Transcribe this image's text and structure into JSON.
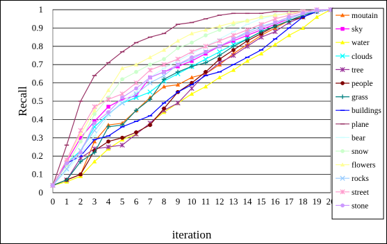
{
  "chart_data": {
    "type": "line",
    "title": "",
    "xlabel": "iteration",
    "ylabel": "Recall",
    "x": [
      0,
      1,
      2,
      3,
      4,
      5,
      6,
      7,
      8,
      9,
      10,
      11,
      12,
      13,
      14,
      15,
      16,
      17,
      18,
      19,
      20
    ],
    "xlim": [
      0,
      20
    ],
    "ylim": [
      0,
      1
    ],
    "yticks": [
      "0",
      "0.1",
      "0.2",
      "0.3",
      "0.4",
      "0.5",
      "0.6",
      "0.7",
      "0.8",
      "0.9",
      "1"
    ],
    "grid": "horizontal",
    "legend": "right",
    "series": [
      {
        "name": "moutain",
        "color": "#ff6a00",
        "marker": "triangle",
        "values": [
          0.04,
          0.07,
          0.1,
          0.28,
          0.37,
          0.38,
          0.45,
          0.52,
          0.58,
          0.59,
          0.63,
          0.65,
          0.7,
          0.76,
          0.81,
          0.86,
          0.9,
          0.94,
          0.97,
          0.99,
          1.0
        ]
      },
      {
        "name": "sky",
        "color": "#ff00ff",
        "marker": "square",
        "values": [
          0.04,
          0.17,
          0.3,
          0.39,
          0.47,
          0.51,
          0.53,
          0.63,
          0.66,
          0.69,
          0.72,
          0.76,
          0.8,
          0.83,
          0.86,
          0.89,
          0.92,
          0.95,
          0.98,
          0.99,
          1.0
        ]
      },
      {
        "name": "water",
        "color": "#ffff00",
        "marker": "triangle",
        "values": [
          0.04,
          0.06,
          0.09,
          0.17,
          0.24,
          0.29,
          0.32,
          0.38,
          0.44,
          0.49,
          0.54,
          0.58,
          0.63,
          0.67,
          0.72,
          0.76,
          0.81,
          0.86,
          0.9,
          0.96,
          1.0
        ]
      },
      {
        "name": "clouds",
        "color": "#00ffff",
        "marker": "x",
        "values": [
          0.04,
          0.16,
          0.23,
          0.36,
          0.43,
          0.49,
          0.52,
          0.55,
          0.61,
          0.65,
          0.69,
          0.73,
          0.77,
          0.81,
          0.84,
          0.88,
          0.91,
          0.94,
          0.97,
          0.99,
          1.0
        ]
      },
      {
        "name": "tree",
        "color": "#993399",
        "marker": "star",
        "values": [
          0.04,
          0.07,
          0.19,
          0.24,
          0.25,
          0.26,
          0.32,
          0.38,
          0.45,
          0.49,
          0.57,
          0.65,
          0.71,
          0.75,
          0.8,
          0.85,
          0.88,
          0.93,
          0.96,
          0.99,
          1.0
        ]
      },
      {
        "name": "people",
        "color": "#7f0000",
        "marker": "circle",
        "values": [
          0.04,
          0.07,
          0.1,
          0.23,
          0.28,
          0.3,
          0.33,
          0.37,
          0.46,
          0.55,
          0.6,
          0.66,
          0.73,
          0.78,
          0.83,
          0.87,
          0.91,
          0.94,
          0.96,
          0.99,
          1.0
        ]
      },
      {
        "name": "grass",
        "color": "#008080",
        "marker": "plus",
        "values": [
          0.04,
          0.07,
          0.17,
          0.22,
          0.36,
          0.37,
          0.45,
          0.51,
          0.62,
          0.66,
          0.69,
          0.71,
          0.75,
          0.8,
          0.84,
          0.88,
          0.91,
          0.94,
          0.97,
          0.99,
          1.0
        ]
      },
      {
        "name": "buildings",
        "color": "#0000ff",
        "marker": "dash",
        "values": [
          0.04,
          0.16,
          0.2,
          0.29,
          0.31,
          0.36,
          0.39,
          0.42,
          0.49,
          0.55,
          0.59,
          0.64,
          0.66,
          0.7,
          0.74,
          0.78,
          0.84,
          0.9,
          0.96,
          0.99,
          1.0
        ]
      },
      {
        "name": "plane",
        "color": "#993366",
        "marker": "dash",
        "values": [
          0.04,
          0.26,
          0.5,
          0.64,
          0.71,
          0.77,
          0.82,
          0.85,
          0.87,
          0.92,
          0.93,
          0.95,
          0.97,
          0.98,
          0.98,
          0.98,
          0.99,
          0.99,
          0.99,
          1.0,
          1.0
        ]
      },
      {
        "name": "bear",
        "color": "#ccffff",
        "marker": "dash",
        "values": [
          0.04,
          0.12,
          0.21,
          0.31,
          0.42,
          0.5,
          0.55,
          0.63,
          0.68,
          0.72,
          0.76,
          0.8,
          0.84,
          0.88,
          0.92,
          0.95,
          0.97,
          0.98,
          0.99,
          1.0,
          1.0
        ]
      },
      {
        "name": "snow",
        "color": "#ccffcc",
        "marker": "circle",
        "values": [
          0.04,
          0.15,
          0.28,
          0.43,
          0.52,
          0.62,
          0.66,
          0.7,
          0.73,
          0.79,
          0.82,
          0.86,
          0.89,
          0.92,
          0.94,
          0.96,
          0.97,
          0.98,
          0.99,
          1.0,
          1.0
        ]
      },
      {
        "name": "flowers",
        "color": "#ffff99",
        "marker": "triangle",
        "values": [
          0.04,
          0.18,
          0.32,
          0.45,
          0.56,
          0.68,
          0.7,
          0.74,
          0.78,
          0.83,
          0.87,
          0.89,
          0.91,
          0.93,
          0.94,
          0.96,
          0.97,
          0.98,
          0.99,
          1.0,
          1.0
        ]
      },
      {
        "name": "rocks",
        "color": "#99ccff",
        "marker": "x",
        "values": [
          0.04,
          0.13,
          0.23,
          0.34,
          0.43,
          0.49,
          0.54,
          0.6,
          0.64,
          0.7,
          0.73,
          0.77,
          0.8,
          0.84,
          0.88,
          0.91,
          0.93,
          0.95,
          0.98,
          0.99,
          1.0
        ]
      },
      {
        "name": "street",
        "color": "#ff99cc",
        "marker": "star",
        "values": [
          0.04,
          0.18,
          0.34,
          0.47,
          0.51,
          0.54,
          0.6,
          0.67,
          0.7,
          0.73,
          0.77,
          0.8,
          0.83,
          0.86,
          0.89,
          0.92,
          0.95,
          0.97,
          0.99,
          1.0,
          1.0
        ]
      },
      {
        "name": "stone",
        "color": "#cc99ff",
        "marker": "circle",
        "values": [
          0.04,
          0.16,
          0.22,
          0.38,
          0.44,
          0.52,
          0.57,
          0.63,
          0.66,
          0.7,
          0.74,
          0.77,
          0.8,
          0.84,
          0.87,
          0.9,
          0.93,
          0.96,
          0.98,
          1.0,
          1.0
        ]
      }
    ]
  }
}
